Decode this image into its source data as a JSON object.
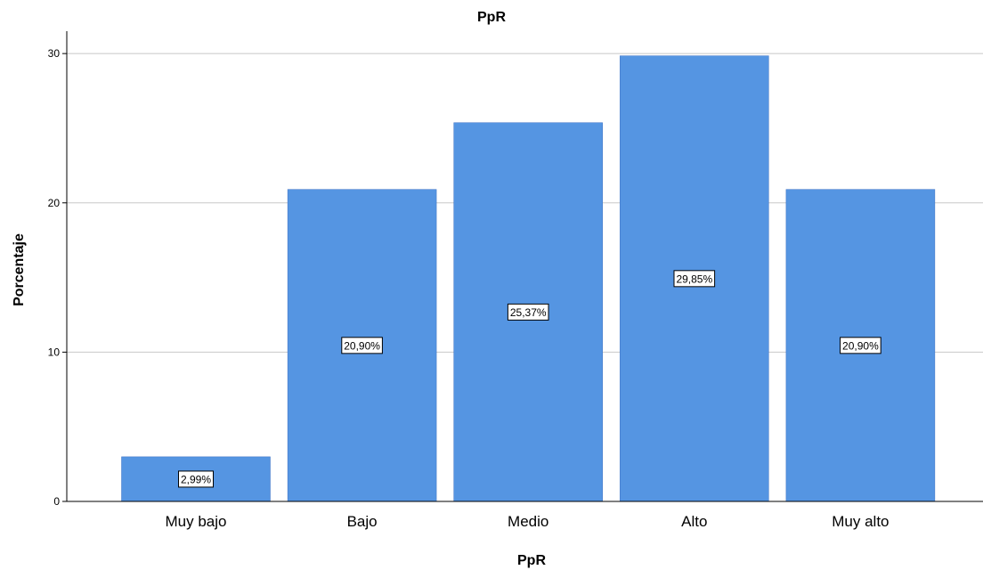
{
  "chart_data": {
    "type": "bar",
    "title": "PpR",
    "xlabel": "PpR",
    "ylabel": "Porcentaje",
    "categories": [
      "Muy bajo",
      "Bajo",
      "Medio",
      "Alto",
      "Muy alto"
    ],
    "values": [
      2.99,
      20.9,
      25.37,
      29.85,
      20.9
    ],
    "data_labels": [
      "2,99%",
      "20,90%",
      "25,37%",
      "29,85%",
      "20,90%"
    ],
    "ylim": [
      0,
      31.5
    ],
    "yticks": [
      0,
      10,
      20,
      30
    ],
    "grid": true,
    "bar_color": "#5595e2"
  }
}
